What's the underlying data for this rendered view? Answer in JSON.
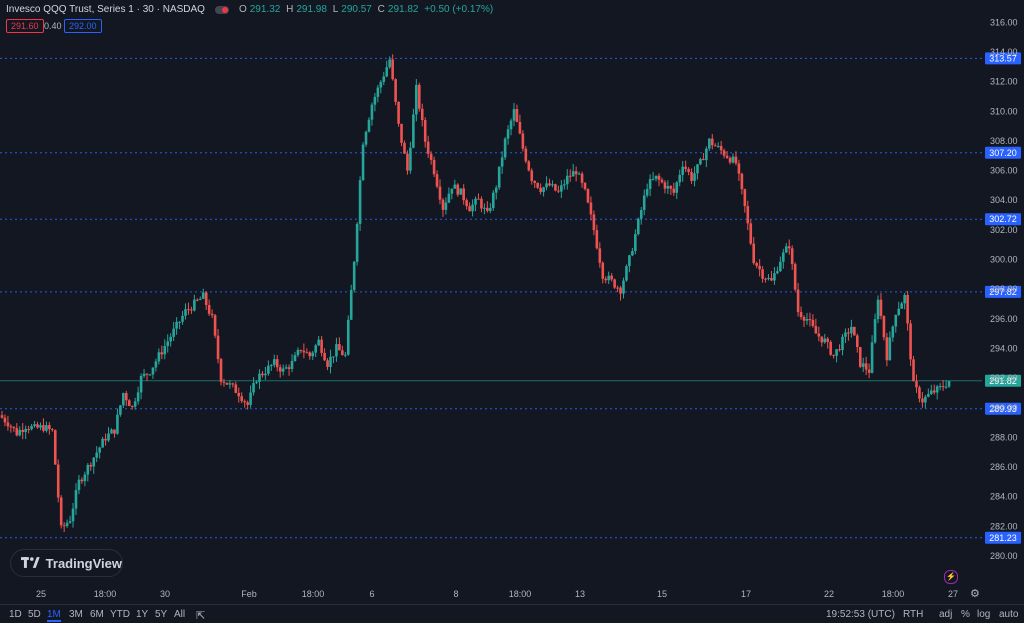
{
  "header": {
    "title": "Invesco QQQ Trust, Series 1 · 30 · NASDAQ",
    "o_label": "O",
    "o_val": "291.32",
    "h_label": "H",
    "h_val": "291.98",
    "l_label": "L",
    "l_val": "290.57",
    "c_label": "C",
    "c_val": "291.82",
    "change": "+0.50 (+0.17%)"
  },
  "order": {
    "bid": "291.60",
    "spread": "0.40",
    "ask": "292.00"
  },
  "logo": {
    "text": "TradingView"
  },
  "timeframes": [
    "1D",
    "5D",
    "1M",
    "3M",
    "6M",
    "YTD",
    "1Y",
    "5Y",
    "All"
  ],
  "active_timeframe": "1M",
  "bottom_right": {
    "time": "19:52:53 (UTC)",
    "session": "RTH",
    "adj": "adj",
    "pct": "%",
    "log": "log",
    "auto": "auto"
  },
  "colors": {
    "up": "#26a69a",
    "down": "#ef5350",
    "line_marker": "#2962ff",
    "background": "#131722"
  },
  "chart_data": {
    "type": "candlestick",
    "yaxis_ticks": [
      280.0,
      282.0,
      284.0,
      286.0,
      288.0,
      290.0,
      292.0,
      294.0,
      296.0,
      298.0,
      300.0,
      302.0,
      304.0,
      306.0,
      308.0,
      310.0,
      312.0,
      314.0,
      316.0
    ],
    "ylim": [
      279,
      317
    ],
    "xaxis_labels": [
      "25",
      "18:00",
      "30",
      "Feb",
      "18:00",
      "6",
      "8",
      "18:00",
      "13",
      "15",
      "17",
      "22",
      "18:00",
      "27"
    ],
    "horizontal_lines": [
      {
        "value": "313.57",
        "color": "blue"
      },
      {
        "value": "307.20",
        "color": "blue"
      },
      {
        "value": "302.72",
        "color": "blue"
      },
      {
        "value": "297.82",
        "color": "blue"
      },
      {
        "value": "291.82",
        "color": "green",
        "current": true
      },
      {
        "value": "289.93",
        "color": "blue"
      },
      {
        "value": "281.23",
        "color": "blue"
      }
    ],
    "close_path": [
      289.5,
      289.0,
      288.3,
      288.8,
      288.6,
      288.7,
      288.4,
      281.8,
      282.5,
      285.0,
      286.0,
      287.0,
      288.0,
      288.5,
      291.0,
      290.0,
      292.0,
      292.5,
      293.5,
      294.5,
      295.5,
      296.5,
      297.0,
      297.5,
      296.0,
      292.0,
      291.5,
      291.0,
      290.2,
      292.0,
      292.5,
      293.0,
      292.5,
      293.0,
      294.0,
      293.5,
      294.5,
      293.0,
      294.0,
      293.5,
      300.0,
      308.0,
      310.5,
      312.0,
      313.5,
      309.0,
      306.0,
      311.5,
      308.0,
      306.0,
      303.5,
      305.0,
      304.5,
      303.5,
      304.0,
      303.0,
      305.0,
      308.0,
      310.0,
      307.5,
      305.5,
      304.8,
      305.0,
      304.5,
      305.5,
      306.0,
      304.5,
      302.0,
      299.0,
      298.5,
      298.0,
      300.0,
      302.5,
      305.0,
      305.5,
      305.0,
      304.5,
      306.5,
      305.5,
      306.5,
      308.0,
      307.5,
      307.0,
      306.5,
      303.5,
      300.0,
      299.0,
      298.5,
      300.0,
      301.0,
      296.5,
      296.0,
      295.0,
      294.5,
      293.5,
      294.5,
      295.5,
      293.0,
      292.5,
      297.5,
      293.5,
      296.5,
      297.5,
      291.5,
      290.5,
      291.0,
      291.3,
      291.82
    ]
  }
}
